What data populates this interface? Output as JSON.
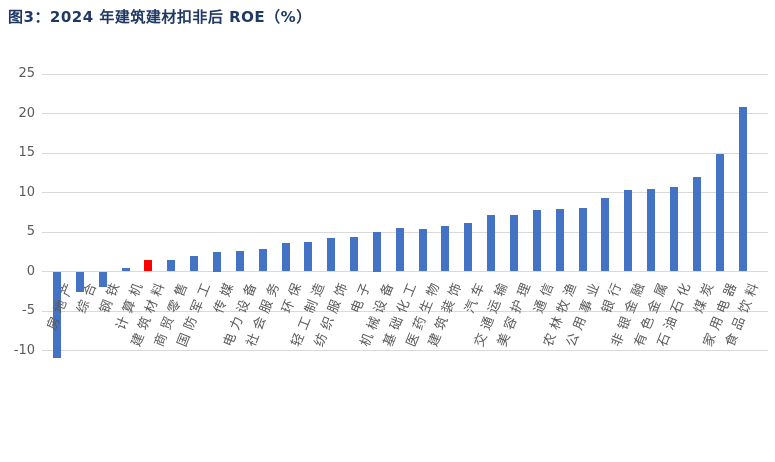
{
  "figure": {
    "title": "图3：2024 年建筑建材扣非后 ROE（%）",
    "title_color": "#1F3864"
  },
  "chart_data": {
    "type": "bar",
    "title": "图3：2024 年建筑建材扣非后 ROE（%）",
    "xlabel": "",
    "ylabel": "",
    "categories": [
      "房地产",
      "综合",
      "钢铁",
      "计算机",
      "建筑材料",
      "商贸零售",
      "国防军工",
      "传媒",
      "电力设备",
      "社会服务",
      "环保",
      "轻工制造",
      "纺织服饰",
      "电子",
      "机械设备",
      "基础化工",
      "医药生物",
      "建筑装饰",
      "汽车",
      "交通运输",
      "美容护理",
      "通信",
      "农林牧渔",
      "公用事业",
      "银行",
      "非银金融",
      "有色金属",
      "石油石化",
      "煤炭",
      "家用电器",
      "食品饮料"
    ],
    "values": [
      -11.0,
      -2.6,
      -1.9,
      0.4,
      1.4,
      1.5,
      2.0,
      2.5,
      2.6,
      2.9,
      3.6,
      3.7,
      4.2,
      4.4,
      5.0,
      5.5,
      5.4,
      5.8,
      6.1,
      7.1,
      7.2,
      7.8,
      7.9,
      8.1,
      9.3,
      10.3,
      10.4,
      10.7,
      11.9,
      14.9,
      20.8
    ],
    "highlight_index": 4,
    "highlight_color": "#FF0000",
    "bar_color": "#4472C4",
    "yticks": [
      25,
      20,
      15,
      10,
      5,
      0,
      -5,
      -10
    ],
    "ylim": [
      -12.5,
      25
    ],
    "grid": true,
    "legend": "none",
    "gridline_color": "#D9D9D9",
    "tick_label_color": "#595959"
  }
}
